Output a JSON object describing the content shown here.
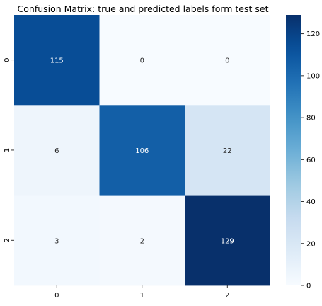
{
  "chart_data": {
    "type": "heatmap",
    "title": "Confusion Matrix: true and predicted labels form test set",
    "xlabel": "",
    "ylabel": "",
    "x_categories": [
      "0",
      "1",
      "2"
    ],
    "y_categories": [
      "0",
      "1",
      "2"
    ],
    "values": [
      [
        115,
        0,
        0
      ],
      [
        6,
        106,
        22
      ],
      [
        3,
        2,
        129
      ]
    ],
    "colorbar": {
      "min": 0,
      "max": 129,
      "ticks": [
        0,
        20,
        40,
        60,
        80,
        100,
        120
      ],
      "colormap": "Blues"
    }
  }
}
